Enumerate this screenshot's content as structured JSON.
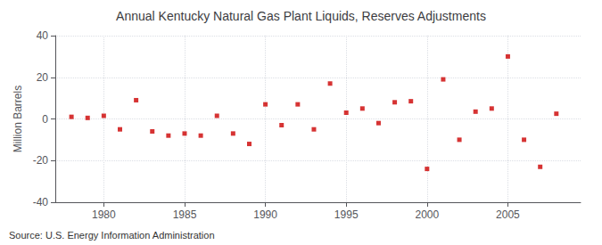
{
  "chart_data": {
    "type": "scatter",
    "title": "Annual Kentucky Natural Gas Plant Liquids, Reserves Adjustments",
    "ylabel": "Million Barrels",
    "source": "Source: U.S. Energy Information Administration",
    "x": [
      1978,
      1979,
      1980,
      1981,
      1982,
      1983,
      1984,
      1985,
      1986,
      1987,
      1988,
      1989,
      1990,
      1991,
      1992,
      1993,
      1994,
      1995,
      1996,
      1997,
      1998,
      1999,
      2000,
      2001,
      2002,
      2003,
      2004,
      2005,
      2006,
      2007,
      2008
    ],
    "values": [
      1.0,
      0.5,
      1.5,
      -5.0,
      9.0,
      -6.0,
      -8.0,
      -7.0,
      -8.0,
      1.5,
      -7.0,
      -12.0,
      7.0,
      -3.0,
      7.0,
      -5.0,
      17.0,
      3.0,
      5.0,
      -2.0,
      8.0,
      8.5,
      -24.0,
      19.0,
      -10.0,
      3.5,
      5.0,
      30.0,
      -10.0,
      -23.0,
      2.5
    ],
    "color": "#cc0000",
    "marker": "square",
    "xlim": [
      1977,
      2009.5
    ],
    "xticks": [
      1980,
      1985,
      1990,
      1995,
      2000,
      2005
    ],
    "ylim": [
      -40,
      40
    ],
    "yticks": [
      -40,
      -20,
      0,
      20,
      40
    ],
    "grid": true
  }
}
